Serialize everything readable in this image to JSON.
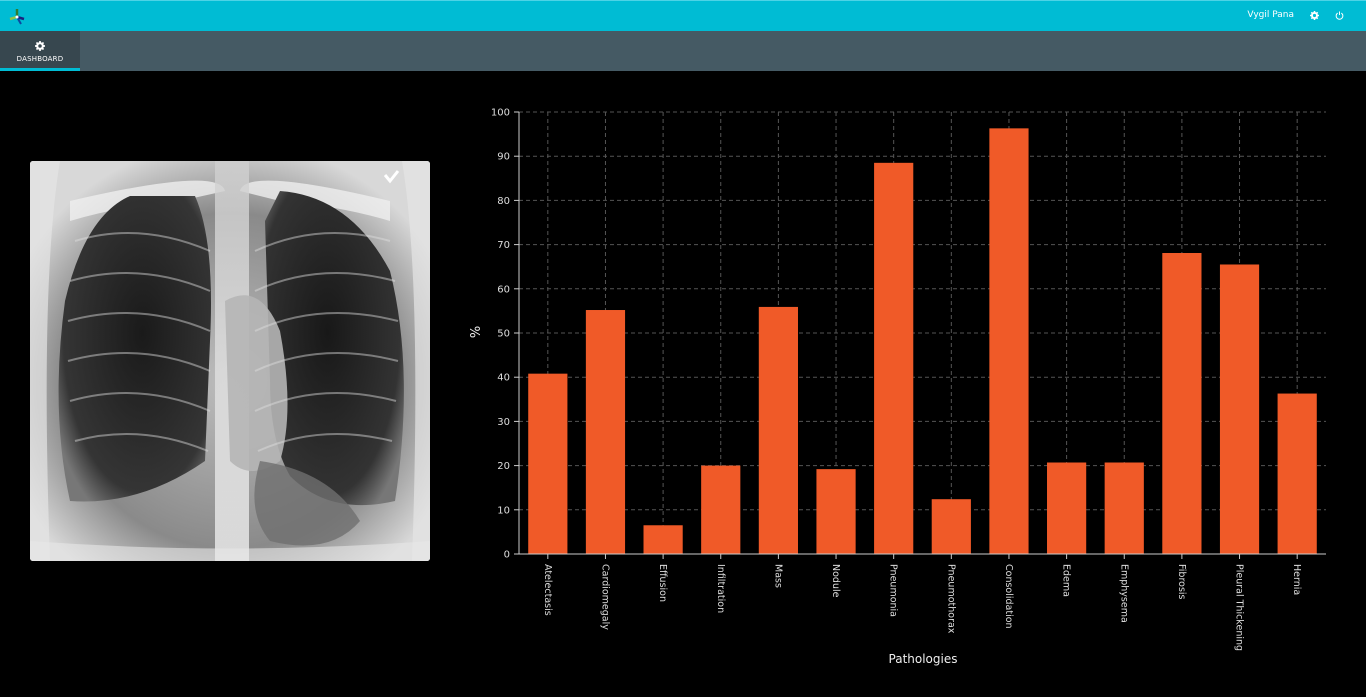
{
  "header": {
    "user_name": "Vygil Pana"
  },
  "nav": {
    "tabs": [
      {
        "label": "DASHBOARD",
        "active": true
      }
    ]
  },
  "colors": {
    "topbar": "#00bcd4",
    "navbar": "#455a64",
    "bar": "#f05a28"
  },
  "chart_data": {
    "type": "bar",
    "categories": [
      "Atelectasis",
      "Cardiomegaly",
      "Effusion",
      "Infiltration",
      "Mass",
      "Nodule",
      "Pneumonia",
      "Pneumothorax",
      "Consolidation",
      "Edema",
      "Emphysema",
      "Fibrosis",
      "Pleural Thickening",
      "Hernia"
    ],
    "values": [
      40.8,
      55.2,
      6.5,
      20.0,
      55.9,
      19.2,
      88.5,
      12.4,
      96.3,
      20.7,
      20.7,
      68.1,
      65.5,
      36.3
    ],
    "xlabel": "Pathologies",
    "ylabel": "%",
    "ylim": [
      0,
      100
    ],
    "yticks": [
      0,
      10,
      20,
      30,
      40,
      50,
      60,
      70,
      80,
      90,
      100
    ],
    "grid": true
  }
}
